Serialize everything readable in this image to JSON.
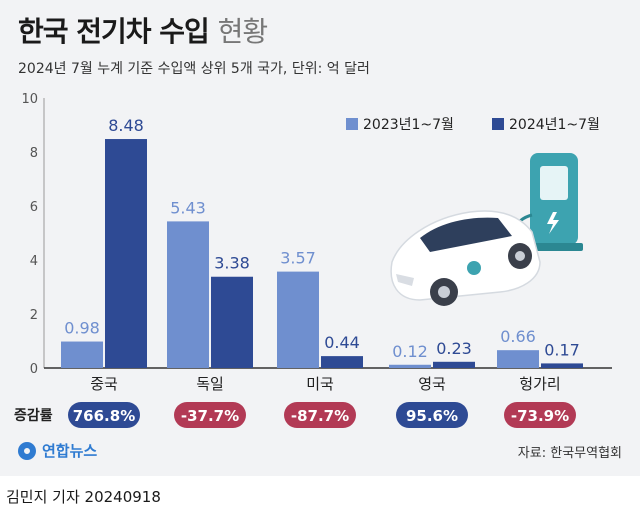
{
  "header": {
    "title_main": "한국 전기차 수입",
    "title_light": "현황",
    "subtitle": "2024년 7월 누계 기준 수입액 상위 5개 국가, 단위: 억 달러"
  },
  "change_label": "증감률",
  "changes": [
    "766.8%",
    "-37.7%",
    "-87.7%",
    "95.6%",
    "-73.9%"
  ],
  "change_colors": [
    "#2e4a94",
    "#b23a55",
    "#b23a55",
    "#2e4a94",
    "#b23a55"
  ],
  "source": "자료: 한국무역협회",
  "logo_text": "연합뉴스",
  "byline": "김민지 기자  20240918",
  "illustration": "electric-car-charging-icon",
  "colors": {
    "series1": "#6f8fcf",
    "series2": "#2e4a94",
    "positive": "#2e4a94",
    "negative": "#b23a55"
  },
  "chart_data": {
    "type": "bar",
    "categories": [
      "중국",
      "독일",
      "미국",
      "영국",
      "헝가리"
    ],
    "series": [
      {
        "name": "2023년1~7월",
        "values": [
          0.98,
          5.43,
          3.57,
          0.12,
          0.66
        ],
        "labels": [
          "0.98",
          "5.43",
          "3.57",
          "0.12",
          "0.66"
        ]
      },
      {
        "name": "2024년1~7월",
        "values": [
          8.48,
          3.38,
          0.44,
          0.23,
          0.17
        ],
        "labels": [
          "8.48",
          "3.38",
          "0.44",
          "0.23",
          "0.17"
        ]
      }
    ],
    "ylim": [
      0,
      10
    ],
    "yticks": [
      "0",
      "2",
      "4",
      "6",
      "8",
      "10"
    ],
    "grid": false,
    "legend": "top-right"
  }
}
